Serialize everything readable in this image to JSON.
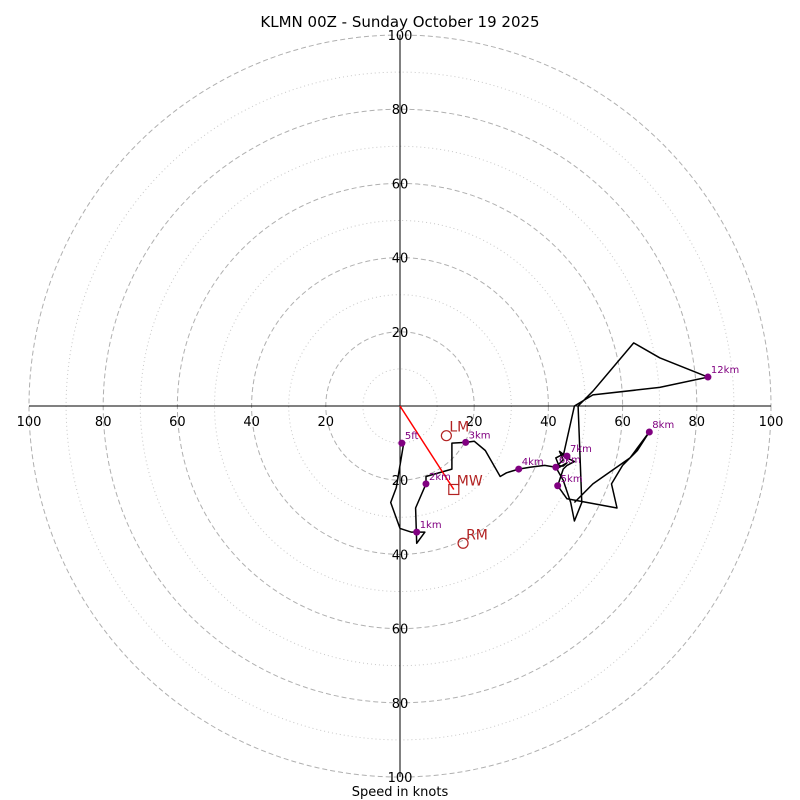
{
  "chart_data": {
    "type": "hodograph",
    "title": "KLMN 00Z - Sunday October 19 2025",
    "xlabel": "Speed in knots",
    "range_max": 100,
    "ring_step_major": 20,
    "ring_step_minor": 10,
    "tick_values": [
      20,
      40,
      60,
      80,
      100
    ],
    "colors": {
      "trace": "#000000",
      "height_marker": "#800080",
      "motion": "#b22222",
      "mean_wind_vector": "#ff0000",
      "grid_major": "#b0b0b0",
      "grid_minor": "#c8c8c8",
      "axes": "#000000"
    },
    "hodograph": {
      "u": [
        0.5,
        1.0,
        -1.0,
        -2.5,
        0.0,
        3.0,
        6.7,
        4.5,
        4.2,
        7.0,
        7.0,
        14.0,
        14.0,
        17.7,
        20.0,
        23.0,
        27.0,
        28.7,
        32.0,
        35.0,
        39.0,
        42.0,
        44.0,
        43.0,
        44.0,
        42.0,
        43.0,
        45.0,
        44.0,
        42.0,
        42.0,
        44.0,
        46.0,
        47.0,
        49.0,
        48.0,
        52.0,
        63.0,
        70.0,
        83.0,
        70.0,
        52.0,
        47.0,
        44.0,
        47.0,
        45.0,
        44.0,
        42.5,
        45.0,
        58.5,
        57.0,
        60.0,
        64.0,
        67.2,
        62.0,
        52.0,
        47.0
      ],
      "v": [
        -10.0,
        -10.0,
        -22.0,
        -26.0,
        -33.0,
        -34.0,
        -34.0,
        -37.0,
        -27.5,
        -21.0,
        -19.0,
        -17.0,
        -10.0,
        -9.8,
        -9.5,
        -12.0,
        -19.0,
        -18.0,
        -17.0,
        -16.5,
        -16.0,
        -16.5,
        -14.5,
        -12.2,
        -13.0,
        -14.0,
        -16.5,
        -15.3,
        -16.2,
        -16.0,
        -16.5,
        -20.0,
        -26.0,
        -31.0,
        -26.0,
        0.0,
        4.0,
        17.0,
        13.0,
        7.8,
        5.0,
        3.0,
        0.0,
        -13.5,
        -15.0,
        -16.0,
        -17.0,
        -21.5,
        -25.0,
        -27.5,
        -21.0,
        -16.0,
        -12.0,
        -7.0,
        -14.0,
        -21.0,
        -26.0
      ],
      "markers": [
        {
          "label": "5ft",
          "u": 0.5,
          "v": -10.0
        },
        {
          "label": "1km",
          "u": 4.5,
          "v": -34.0
        },
        {
          "label": "2km",
          "u": 7.0,
          "v": -21.0
        },
        {
          "label": "3km",
          "u": 17.7,
          "v": -9.8
        },
        {
          "label": "4km",
          "u": 32.0,
          "v": -17.0
        },
        {
          "label": "5km",
          "u": 42.5,
          "v": -21.5
        },
        {
          "label": "6km",
          "u": 42.0,
          "v": -16.5
        },
        {
          "label": "7km",
          "u": 45.0,
          "v": -13.5
        },
        {
          "label": "8km",
          "u": 67.2,
          "v": -7.0
        },
        {
          "label": "12km",
          "u": 83.0,
          "v": 7.8
        }
      ]
    },
    "storm_motion": [
      {
        "label": "LM",
        "u": 12.5,
        "v": -8.0,
        "symbol": "circle"
      },
      {
        "label": "MW",
        "u": 14.5,
        "v": -22.5,
        "symbol": "square"
      },
      {
        "label": "RM",
        "u": 17.0,
        "v": -37.0,
        "symbol": "circle"
      }
    ],
    "mean_wind_vector": {
      "u": 14.5,
      "v": -22.5
    }
  }
}
